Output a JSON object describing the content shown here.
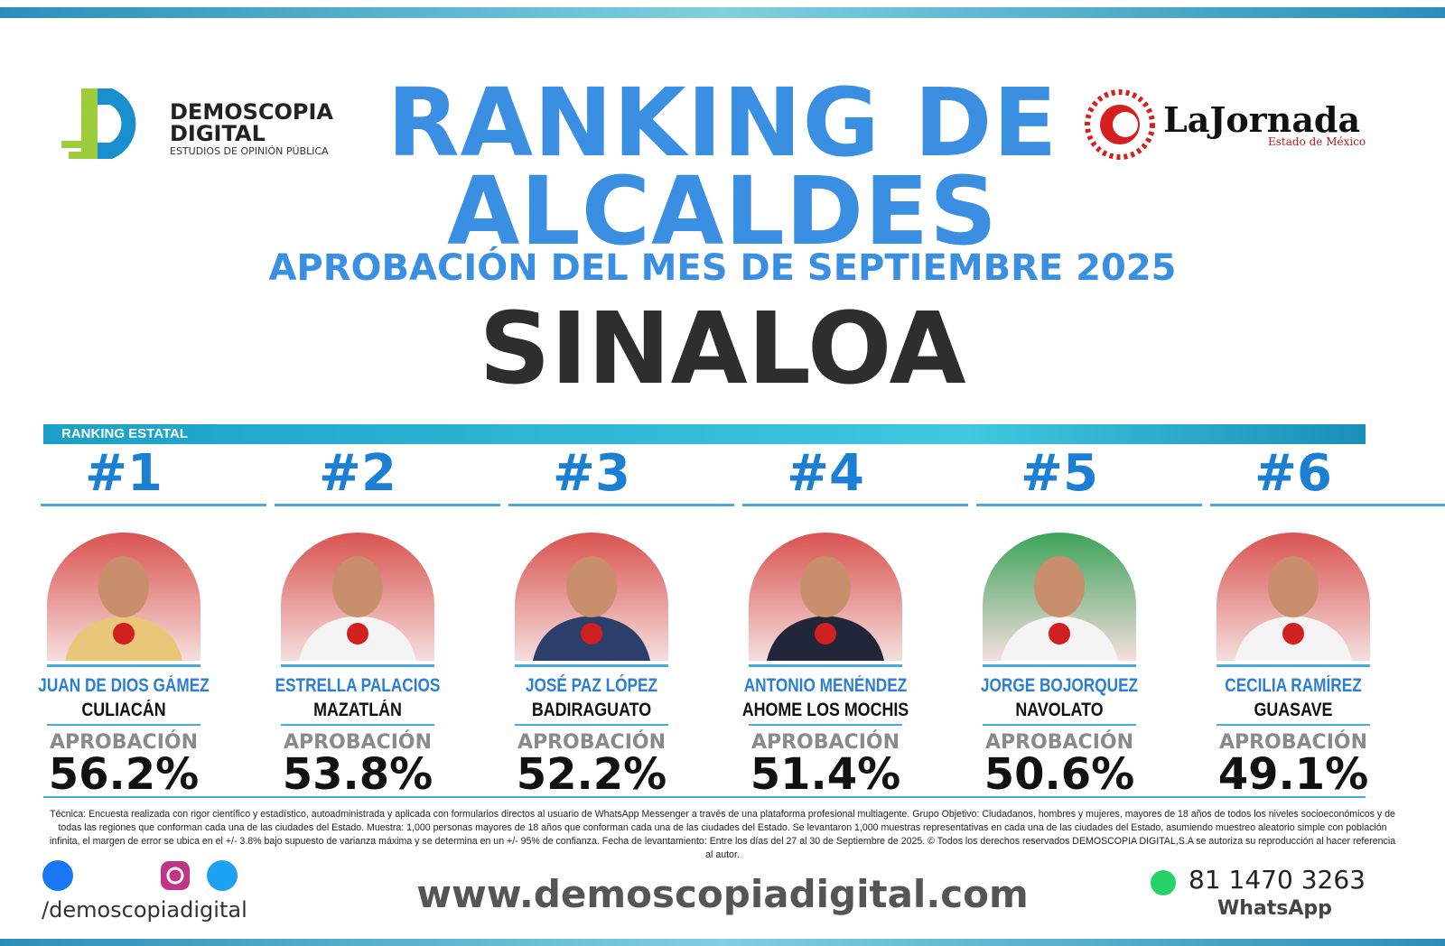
{
  "header": {
    "logo_left": {
      "line1": "DEMOSCOPIA",
      "line2": "DIGITAL",
      "tagline": "ESTUDIOS DE OPINIÓN PÚBLICA"
    },
    "title_lines": [
      "RANKING DE",
      "ALCALDES"
    ],
    "subtitle": "APROBACIÓN DEL MES DE SEPTIEMBRE 2025",
    "state": "SINALOA",
    "logo_right": {
      "name": "LaJornada",
      "sub": "Estado de México"
    }
  },
  "section_label": "RANKING ESTATAL",
  "candidates": [
    {
      "rank": "#1",
      "name": "JUAN DE DIOS GÁMEZ",
      "city": "CULIACÁN",
      "label": "APROBACIÓN",
      "value": "56.2%"
    },
    {
      "rank": "#2",
      "name": "ESTRELLA PALACIOS",
      "city": "MAZATLÁN",
      "label": "APROBACIÓN",
      "value": "53.8%"
    },
    {
      "rank": "#3",
      "name": "JOSÉ PAZ LÓPEZ",
      "city": "BADIRAGUATO",
      "label": "APROBACIÓN",
      "value": "52.2%"
    },
    {
      "rank": "#4",
      "name": "ANTONIO MENÉNDEZ",
      "city": "AHOME LOS MOCHIS",
      "label": "APROBACIÓN",
      "value": "51.4%"
    },
    {
      "rank": "#5",
      "name": "JORGE BOJORQUEZ",
      "city": "NAVOLATO",
      "label": "APROBACIÓN",
      "value": "50.6%"
    },
    {
      "rank": "#6",
      "name": "CECILIA RAMÍREZ",
      "city": "GUASAVE",
      "label": "APROBACIÓN",
      "value": "49.1%"
    }
  ],
  "footnote": "Técnica: Encuesta realizada con rigor científico y estadístico, autoadministrada y aplicada con formularios directos al usuario de WhatsApp Messenger a través de una plataforma profesional multiagente. Grupo Objetivo: Ciudadanos, hombres y mujeres, mayores de 18 años de todos los niveles socioeconómicos y de todas las regiones que conforman cada una de las ciudades del Estado. Muestra: 1,000 personas mayores de 18 años que conforman cada una de las ciudades del Estado. Se levantaron 1,000 muestras representativas en cada una de las ciudades del Estado, asumiendo muestreo aleatorio simple con población infinita, el margen de error se ubica en el +/- 3.8% bajo supuesto de varianza máxima y se determina en un +/- 95% de confianza. Fecha de levantamiento: Entre los días del 27 al 30 de Septiembre de 2025. © Todos los derechos reservados DEMOSCOPIA DIGITAL,S.A se autoriza su reproducción al hacer referencia al autor.",
  "footer": {
    "handle": "/demoscopiadigital",
    "url": "www.demoscopiadigital.com",
    "phone": "81 1470 3263",
    "phone_label": "WhatsApp"
  }
}
